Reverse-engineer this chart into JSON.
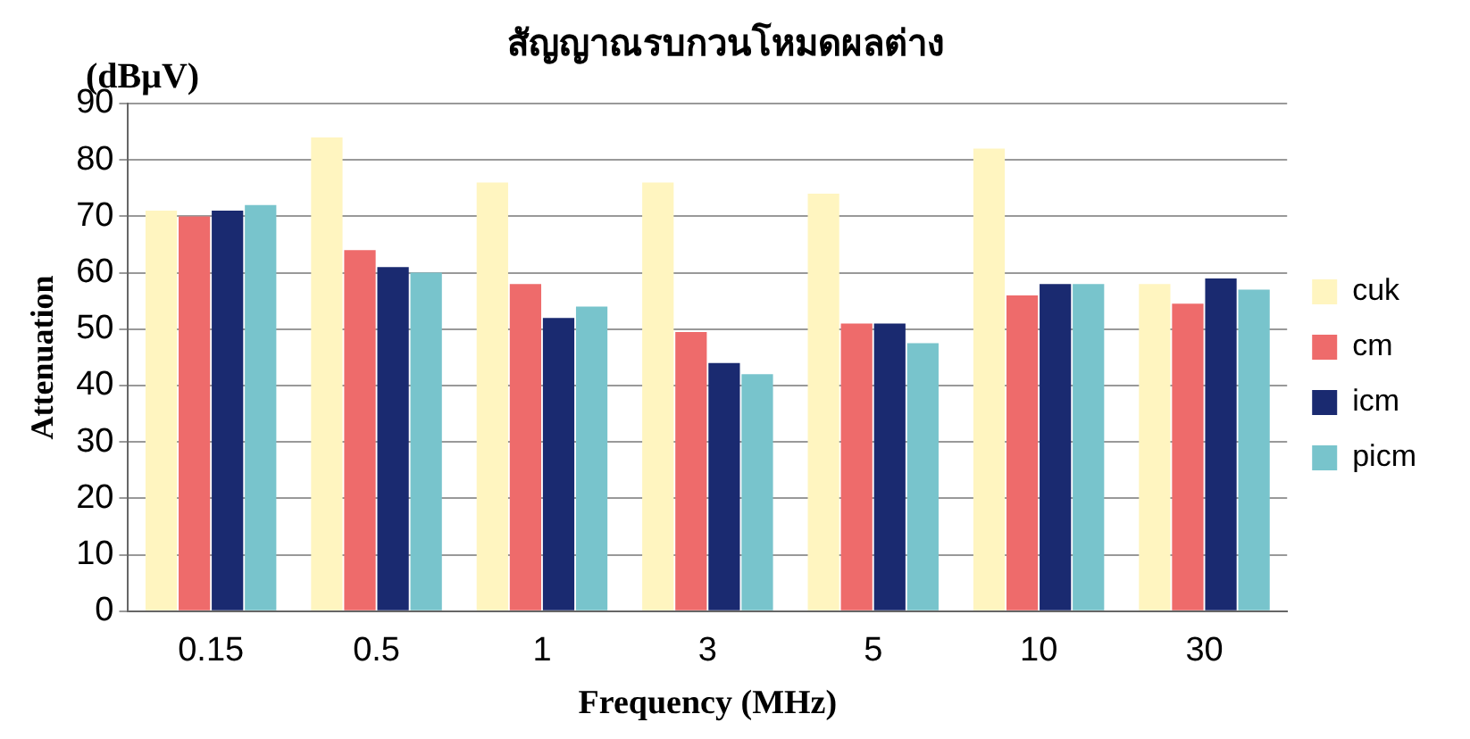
{
  "chart_data": {
    "type": "bar",
    "title": "สัญญาณรบกวนโหมดผลต่าง",
    "xlabel": "Frequency (MHz)",
    "ylabel": "Attenuation",
    "annotations": [
      "(dBμV)"
    ],
    "categories": [
      "0.15",
      "0.5",
      "1",
      "3",
      "5",
      "10",
      "30"
    ],
    "series": [
      {
        "name": "cuk",
        "color": "#fff5c0",
        "values": [
          71,
          84,
          76,
          76,
          74,
          82,
          58
        ]
      },
      {
        "name": "cm",
        "color": "#ee6b6b",
        "values": [
          70,
          64,
          58,
          49.5,
          51,
          56,
          54.5
        ]
      },
      {
        "name": "icm",
        "color": "#1a2a70",
        "values": [
          71,
          61,
          52,
          44,
          51,
          58,
          59
        ]
      },
      {
        "name": "picm",
        "color": "#78c4cc",
        "values": [
          72,
          60,
          54,
          42,
          47.5,
          58,
          57
        ]
      }
    ],
    "ylim": [
      0,
      90
    ],
    "yticks": [
      0,
      10,
      20,
      30,
      40,
      50,
      60,
      70,
      80,
      90
    ],
    "grid": "y",
    "legend": "right"
  }
}
